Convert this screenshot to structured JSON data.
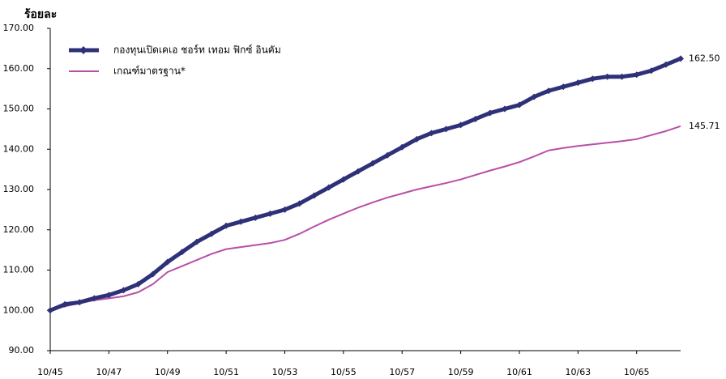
{
  "chart_data": {
    "type": "line",
    "title": "ร้อยละ",
    "categories": [
      "10/45",
      null,
      null,
      null,
      "10/47",
      null,
      null,
      null,
      "10/49",
      null,
      null,
      null,
      "10/51",
      null,
      null,
      null,
      "10/53",
      null,
      null,
      null,
      "10/55",
      null,
      null,
      null,
      "10/57",
      null,
      null,
      null,
      "10/59",
      null,
      null,
      null,
      "10/61",
      null,
      null,
      null,
      "10/63",
      null,
      null,
      null,
      "10/65",
      null,
      null,
      null
    ],
    "series": [
      {
        "name": "กองทุนเปิดเคเอ ชอร์ท เทอม ฟิกซ์ อินคัม",
        "color": "#2e3177",
        "marker": "diamond",
        "values": [
          100,
          101.5,
          102,
          103,
          103.8,
          105,
          106.5,
          109,
          112,
          114.5,
          117,
          119,
          121,
          122,
          123,
          124,
          125,
          126.5,
          128.5,
          130.5,
          132.5,
          134.5,
          136.5,
          138.5,
          140.5,
          142.5,
          144,
          145,
          146,
          147.5,
          149,
          150,
          151,
          153,
          154.5,
          155.5,
          156.5,
          157.5,
          158,
          158,
          158.5,
          159.5,
          161,
          162.5
        ],
        "value_labels": [
          null,
          null,
          null,
          null,
          null,
          null,
          null,
          null,
          null,
          null,
          null,
          null,
          null,
          null,
          null,
          null,
          null,
          null,
          null,
          null,
          null,
          null,
          null,
          null,
          null,
          null,
          null,
          null,
          null,
          null,
          null,
          null,
          null,
          null,
          null,
          null,
          null,
          null,
          null,
          null,
          null,
          null,
          null,
          "162.50"
        ]
      },
      {
        "name": "เกณฑ์มาตรฐาน*",
        "color": "#b84fa5",
        "values": [
          100,
          101,
          101.8,
          102.5,
          103,
          103.5,
          104.5,
          106.5,
          109.5,
          111,
          112.5,
          114,
          115.2,
          115.7,
          116.2,
          116.7,
          117.5,
          119,
          120.8,
          122.5,
          124,
          125.5,
          126.8,
          128,
          129,
          130,
          130.8,
          131.6,
          132.5,
          133.6,
          134.7,
          135.7,
          136.8,
          138.2,
          139.7,
          140.3,
          140.8,
          141.2,
          141.6,
          142,
          142.5,
          143.5,
          144.5,
          145.71
        ],
        "value_labels": [
          null,
          null,
          null,
          null,
          null,
          null,
          null,
          null,
          null,
          null,
          null,
          null,
          null,
          null,
          null,
          null,
          null,
          null,
          null,
          null,
          null,
          null,
          null,
          null,
          null,
          null,
          null,
          null,
          null,
          null,
          null,
          null,
          null,
          null,
          null,
          null,
          null,
          null,
          null,
          null,
          null,
          null,
          null,
          "145.71"
        ]
      }
    ],
    "ylim": [
      90,
      170
    ],
    "yticks": [
      {
        "value": 90,
        "label": "90.00"
      },
      {
        "value": 100,
        "label": "100.00"
      },
      {
        "value": 110,
        "label": "110.00"
      },
      {
        "value": 120,
        "label": "120.00"
      },
      {
        "value": 130,
        "label": "130.00"
      },
      {
        "value": 140,
        "label": "140.00"
      },
      {
        "value": 150,
        "label": "150.00"
      },
      {
        "value": 160,
        "label": "160.00"
      },
      {
        "value": 170,
        "label": "170.00"
      }
    ],
    "grid": false,
    "legend": "upper left"
  }
}
